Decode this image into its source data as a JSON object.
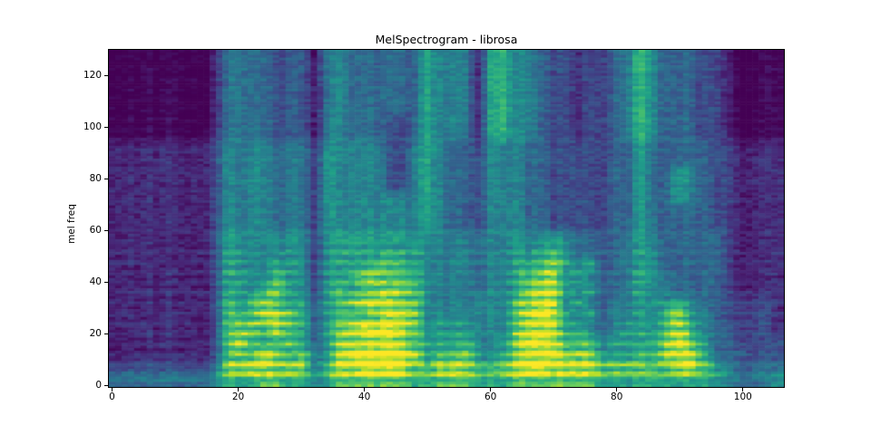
{
  "figure": {
    "background": "#ffffff",
    "title": "MelSpectrogram - librosa",
    "y_axis_label": "mel freq",
    "x_tick_labels": [
      "0",
      "20",
      "40",
      "60",
      "80",
      "100"
    ],
    "y_tick_labels": [
      "0",
      "20",
      "40",
      "60",
      "80",
      "100",
      "120"
    ]
  },
  "chart_data": {
    "type": "heatmap",
    "subtype": "mel-spectrogram",
    "title": "MelSpectrogram - librosa",
    "xlabel": "",
    "ylabel": "mel freq",
    "xticks": [
      0,
      20,
      40,
      60,
      80,
      100
    ],
    "yticks": [
      0,
      20,
      40,
      60,
      80,
      100,
      120
    ],
    "x_range": [
      -0.5,
      106.5
    ],
    "y_range": [
      -0.5,
      130
    ],
    "n_time_frames": 107,
    "n_mel_bins": 130,
    "grid": false,
    "legend": false,
    "colorbar": false,
    "colormap": "viridis",
    "viridis_stops": [
      "#440154",
      "#482878",
      "#3e4a89",
      "#31688e",
      "#26828e",
      "#1f9e89",
      "#35b779",
      "#6ece58",
      "#b5de2b",
      "#fde725"
    ],
    "frame_color": "#000000",
    "text_color": "#000000",
    "intensity_grid": {
      "description": "Coarse intensity map of the spectrogram image. Digits 0 (min, dark purple) to 9 (max, bright yellow). 54 columns = time frames 0..107 left-to-right (2 frames per column); 26 rows = mel bins 130 (top) down to 0 (bottom), 5 bins per row. Silence before frame ~17 and after ~100; voiced speech segments with low-frequency harmonic stripes in between.",
      "cols": 54,
      "rows": 26,
      "values_top_to_bottom": [
        "000000001343323214433333354441564432212234643332210000",
        "000000001343323214433333354441564432212234643332210000",
        "000000001343323214433333354441564432212234643332210000",
        "000000001343323214433333354441564432212234643332210000",
        "000000001343323214433333354441564432212234643332210000",
        "000000001343323214433322354441564432212234643332210000",
        "000000001343323214433322354441564432212234643332210000",
        "111111112444434325444422454332444332222233533333221111",
        "111111112444434325444422454332444332222233533333221111",
        "111111112444434325444422454332444332222233533543221111",
        "111111112444434325444422454332444332222233533543221111",
        "111111112444434325444444454332444332222233533543221111",
        "111111112444434325444444454332444332222233533333221111",
        "111111112444434325444444454332444332222233533333221111",
        "111111112554445425555555544443445445433334543333321111",
        "111111112554445425555555544443445456433334543333321111",
        "111111112554455425555666544443445567545334543333321111",
        "111111112554465425567766644443445678454334544333321111",
        "111111112554675425656777644443445788545334544333321111",
        "111111112656765535678887744444446789454344545643322221",
        "111111112666887535666788744444446898545344546854322221",
        "111111112677686535789998745554446889554345546864332221",
        "111111112686567535777887655564457998666455557975332222",
        "111111112676876645899999856675457889777555658886333222",
        "222222223788878746889999768886678998888777767897543333",
        "444444445666776656777777667776667777777666666666554445"
      ]
    }
  }
}
